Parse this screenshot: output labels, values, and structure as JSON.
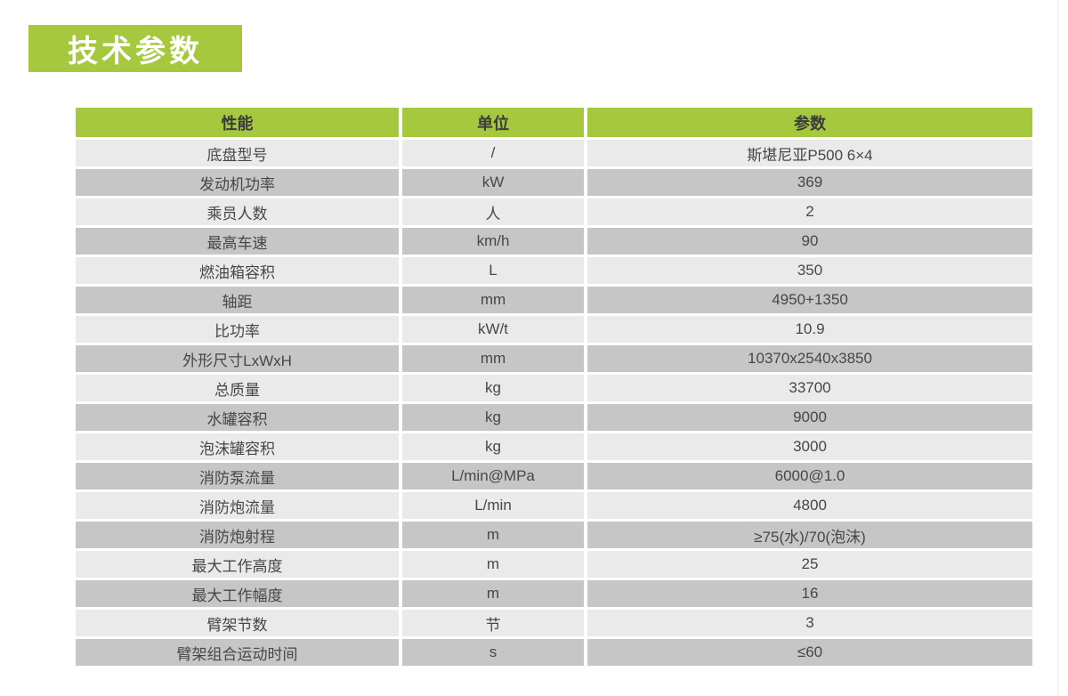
{
  "badge": {
    "title": "技术参数"
  },
  "colors": {
    "green": "#a6c83f",
    "row_light": "#eaeaea",
    "row_dark": "#c6c6c6",
    "header_text": "#3b3b3b",
    "body_text": "#474747",
    "badge_text": "#ffffff"
  },
  "table": {
    "headers": [
      "性能",
      "单位",
      "参数"
    ],
    "rows": [
      {
        "performance": "底盘型号",
        "unit": "/",
        "value": "斯堪尼亚P500 6×4"
      },
      {
        "performance": "发动机功率",
        "unit": "kW",
        "value": "369"
      },
      {
        "performance": "乘员人数",
        "unit": "人",
        "value": "2"
      },
      {
        "performance": "最高车速",
        "unit": "km/h",
        "value": "90"
      },
      {
        "performance": "燃油箱容积",
        "unit": "L",
        "value": "350"
      },
      {
        "performance": "轴距",
        "unit": "mm",
        "value": "4950+1350"
      },
      {
        "performance": "比功率",
        "unit": "kW/t",
        "value": "10.9"
      },
      {
        "performance": "外形尺寸LxWxH",
        "unit": "mm",
        "value": "10370x2540x3850"
      },
      {
        "performance": "总质量",
        "unit": "kg",
        "value": "33700"
      },
      {
        "performance": "水罐容积",
        "unit": "kg",
        "value": "9000"
      },
      {
        "performance": "泡沫罐容积",
        "unit": "kg",
        "value": "3000"
      },
      {
        "performance": "消防泵流量",
        "unit": "L/min@MPa",
        "value": "6000@1.0"
      },
      {
        "performance": "消防炮流量",
        "unit": "L/min",
        "value": "4800"
      },
      {
        "performance": "消防炮射程",
        "unit": "m",
        "value": "≥75(水)/70(泡沫)"
      },
      {
        "performance": "最大工作高度",
        "unit": "m",
        "value": "25"
      },
      {
        "performance": "最大工作幅度",
        "unit": "m",
        "value": "16"
      },
      {
        "performance": "臂架节数",
        "unit": "节",
        "value": "3"
      },
      {
        "performance": "臂架组合运动时间",
        "unit": "s",
        "value": "≤60"
      }
    ]
  }
}
